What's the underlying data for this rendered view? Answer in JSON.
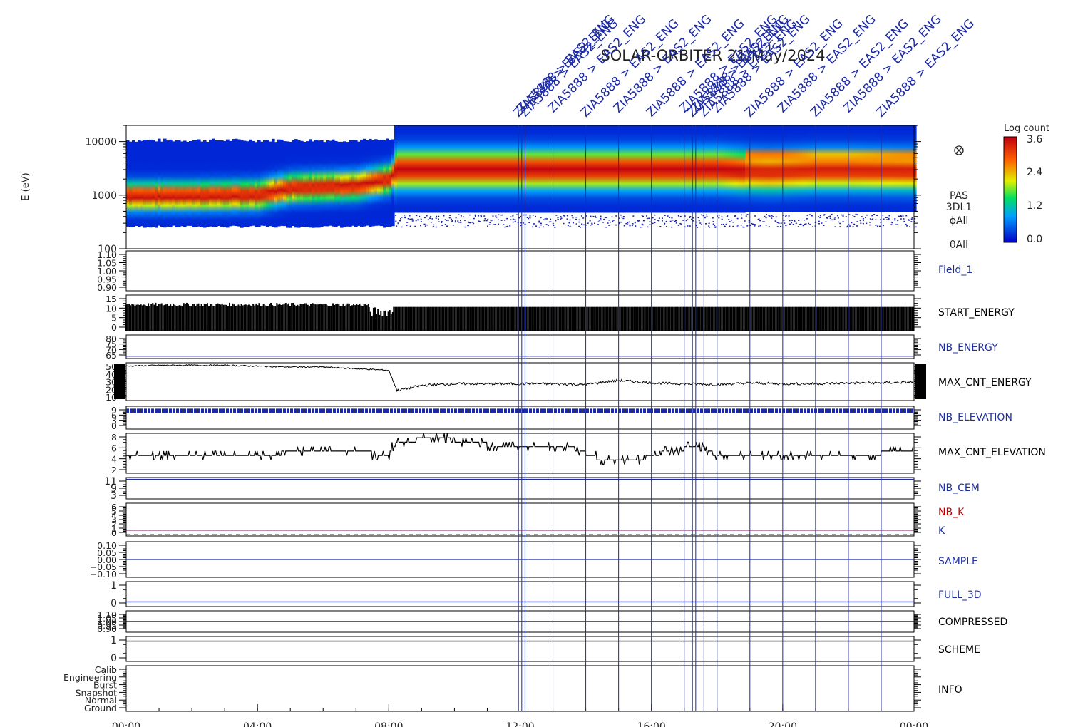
{
  "title": "SOLAR-ORBITER   21/May/2024",
  "annotation_text": "ZIA5888 > EAS2_ENG",
  "chart_data": [
    {
      "type": "heatmap",
      "name": "energy-spectrogram",
      "ylabel": "E (eV)",
      "yscale": "log",
      "ylim": [
        100,
        20000
      ],
      "y_ticks": [
        "10000",
        "1000",
        "100"
      ],
      "side_labels": [
        "PAS",
        "3DL1",
        "ϕAll",
        "θAll"
      ],
      "colorbar": {
        "title": "Log count",
        "range": [
          0.0,
          3.6
        ],
        "ticks": [
          "3.6",
          "2.4",
          "1.2",
          "0.0"
        ]
      },
      "peak_energy_ev": [
        [
          0,
          950
        ],
        [
          2,
          960
        ],
        [
          4,
          1000
        ],
        [
          5,
          1350
        ],
        [
          7,
          1500
        ],
        [
          8,
          2000
        ],
        [
          8.2,
          3000
        ],
        [
          10,
          3000
        ],
        [
          12,
          3000
        ],
        [
          14,
          3000
        ],
        [
          16,
          3000
        ],
        [
          18,
          3000
        ],
        [
          18.8,
          2800
        ],
        [
          19.5,
          2700
        ],
        [
          20,
          2750
        ],
        [
          21,
          2900
        ],
        [
          22,
          2900
        ],
        [
          24,
          2800
        ]
      ]
    },
    {
      "type": "line",
      "name": "Field_1",
      "label": "Field_1",
      "label_color": "#1f2f9a",
      "y_ticks": [
        "1.10",
        "1.05",
        "1.00",
        "0.95",
        "0.90"
      ],
      "ylim": [
        0.9,
        1.1
      ]
    },
    {
      "type": "bar",
      "name": "START_ENERGY",
      "label": "START_ENERGY",
      "label_color": "#000000",
      "y_ticks": [
        "15",
        "10",
        "5",
        "0"
      ],
      "ylim": [
        0,
        15
      ],
      "segments": [
        {
          "x0": 0,
          "x1": 7.4,
          "value": 11,
          "jitter": 1.5
        },
        {
          "x0": 7.4,
          "x1": 8.15,
          "value": 8,
          "jitter": 4
        },
        {
          "x0": 8.15,
          "x1": 24,
          "value": 10,
          "jitter": 0
        }
      ]
    },
    {
      "type": "line",
      "name": "NB_ENERGY",
      "label": "NB_ENERGY",
      "label_color": "#1f2f9a",
      "y_ticks": [
        "80",
        "75",
        "70",
        "65"
      ],
      "ylim": [
        62,
        82
      ],
      "constant": 64
    },
    {
      "type": "line",
      "name": "MAX_CNT_ENERGY",
      "label": "MAX_CNT_ENERGY",
      "label_color": "#000000",
      "y_ticks": [
        "50",
        "40",
        "30",
        "20",
        "10"
      ],
      "ylim": [
        10,
        55
      ],
      "points": [
        [
          0,
          51
        ],
        [
          1,
          52
        ],
        [
          2,
          52
        ],
        [
          3,
          52
        ],
        [
          4,
          51
        ],
        [
          5,
          50
        ],
        [
          6,
          50
        ],
        [
          7,
          48
        ],
        [
          8,
          46
        ],
        [
          8.25,
          22
        ],
        [
          9,
          28
        ],
        [
          10,
          30
        ],
        [
          11,
          30
        ],
        [
          12,
          30
        ],
        [
          13,
          30
        ],
        [
          14,
          29
        ],
        [
          15,
          34
        ],
        [
          16,
          31
        ],
        [
          17,
          30
        ],
        [
          18,
          29
        ],
        [
          19,
          31
        ],
        [
          20,
          30
        ],
        [
          21,
          30
        ],
        [
          22,
          31
        ],
        [
          23,
          31
        ],
        [
          24,
          32
        ]
      ]
    },
    {
      "type": "line",
      "name": "NB_ELEVATION",
      "label": "NB_ELEVATION",
      "label_color": "#1f2f9a",
      "y_ticks": [
        "9",
        "6",
        "3",
        "0"
      ],
      "ylim": [
        0,
        10
      ],
      "constant": 8
    },
    {
      "type": "line",
      "name": "MAX_CNT_ELEVATION",
      "label": "MAX_CNT_ELEVATION",
      "label_color": "#000000",
      "y_ticks": [
        "8",
        "6",
        "4",
        "2"
      ],
      "ylim": [
        0,
        9
      ],
      "points": [
        [
          0,
          4
        ],
        [
          4.5,
          4
        ],
        [
          5,
          5
        ],
        [
          6,
          5
        ],
        [
          7,
          5
        ],
        [
          8,
          4
        ],
        [
          8.2,
          7
        ],
        [
          9.5,
          8
        ],
        [
          10.5,
          7
        ],
        [
          11.5,
          6
        ],
        [
          12.5,
          6
        ],
        [
          13.5,
          6
        ],
        [
          14.5,
          3
        ],
        [
          15.5,
          3
        ],
        [
          16.5,
          5
        ],
        [
          17.5,
          6
        ],
        [
          18,
          4
        ],
        [
          18.8,
          4
        ],
        [
          19.5,
          4
        ],
        [
          20.5,
          4
        ],
        [
          21.5,
          4
        ],
        [
          22.5,
          4
        ],
        [
          23.5,
          5
        ],
        [
          24,
          5
        ]
      ]
    },
    {
      "type": "line",
      "name": "NB_CEM",
      "label": "NB_CEM",
      "label_color": "#1f2f9a",
      "y_ticks": [
        "11",
        "9",
        "3"
      ],
      "ylim": [
        0,
        12
      ],
      "constant": 11
    },
    {
      "type": "line",
      "name": "NB_K",
      "label": "NB_K",
      "label2": "K",
      "label_color": "#c00000",
      "label2_color": "#1f2f9a",
      "y_ticks": [
        "6",
        "5",
        "4",
        "3",
        "2",
        "1",
        "0"
      ],
      "ylim": [
        -0.3,
        7
      ],
      "constant": 1
    },
    {
      "type": "line",
      "name": "SAMPLE",
      "label": "SAMPLE",
      "label_color": "#1f2f9a",
      "y_ticks": [
        "0.10",
        "0.05",
        "0.00",
        "−0.05",
        "−0.10"
      ],
      "ylim": [
        -0.1,
        0.1
      ],
      "constant": 0
    },
    {
      "type": "line",
      "name": "FULL_3D",
      "label": "FULL_3D",
      "label_color": "#1f2f9a",
      "y_ticks": [
        "1",
        "0"
      ],
      "ylim": [
        -0.3,
        1.3
      ],
      "constant": 0
    },
    {
      "type": "line",
      "name": "COMPRESSED",
      "label": "COMPRESSED",
      "label_color": "#000000",
      "y_ticks": [
        "1.10",
        "1.05",
        "1.00",
        "0.95",
        "0.90"
      ],
      "ylim": [
        0.9,
        1.1
      ],
      "constant": 1
    },
    {
      "type": "line",
      "name": "SCHEME",
      "label": "SCHEME",
      "label_color": "#000000",
      "y_ticks": [
        "1",
        "0"
      ],
      "ylim": [
        -0.3,
        1.3
      ],
      "constant": 1
    },
    {
      "type": "line",
      "name": "INFO",
      "label": "INFO",
      "label_color": "#000000",
      "y_ticks": [
        "Calib",
        "Engineering",
        "Burst",
        "Snapshot",
        "Normal",
        "Ground"
      ],
      "ylim": [
        0,
        6
      ]
    }
  ],
  "x_axis": {
    "range_hours": [
      0,
      24
    ],
    "tick_labels": [
      "00:00",
      "04:00",
      "08:00",
      "12:00",
      "16:00",
      "20:00",
      "00:00"
    ],
    "tick_hours": [
      0,
      4,
      8,
      12,
      16,
      20,
      24
    ]
  },
  "event_markers_hours": [
    11.95,
    12.05,
    12.15,
    13.0,
    14.0,
    15.0,
    16.0,
    17.0,
    17.25,
    17.35,
    17.6,
    18.0,
    19.0,
    20.0,
    21.0,
    22.0,
    23.0
  ],
  "colors": {
    "marker": "#1c2aa8",
    "annotation": "#1c2aa8"
  }
}
